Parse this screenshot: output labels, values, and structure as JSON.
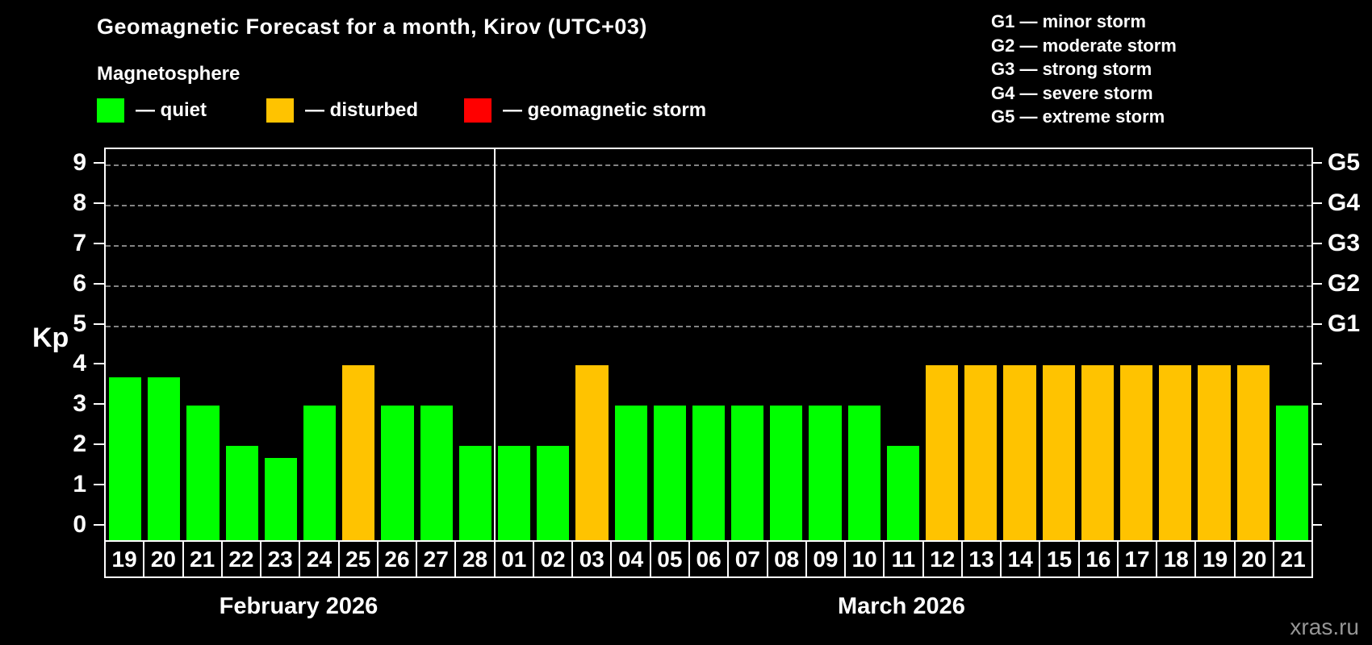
{
  "header": {
    "title": "Geomagnetic Forecast for a month, Kirov (UTC+03)"
  },
  "magnetosphere_legend": {
    "title": "Magnetosphere",
    "items": [
      {
        "label": "— quiet",
        "state": "quiet"
      },
      {
        "label": "— disturbed",
        "state": "disturbed"
      },
      {
        "label": "— geomagnetic storm",
        "state": "storm"
      }
    ]
  },
  "storm_scale_legend": {
    "items": [
      "G1 — minor storm",
      "G2 — moderate storm",
      "G3 — strong storm",
      "G4 — severe storm",
      "G5 — extreme storm"
    ]
  },
  "watermark": "xras.ru",
  "colors": {
    "quiet": "#00ff00",
    "disturbed": "#ffc300",
    "storm": "#ff0000",
    "background": "#000000",
    "axis": "#ffffff",
    "gridline": "#9a9a9a"
  },
  "chart_data": {
    "type": "bar",
    "title": "Geomagnetic Forecast for a month, Kirov (UTC+03)",
    "ylabel": "Kp",
    "ylim": [
      0,
      9
    ],
    "yticks": [
      0,
      1,
      2,
      3,
      4,
      5,
      6,
      7,
      8,
      9
    ],
    "grid_kp_levels": [
      5,
      6,
      7,
      8,
      9
    ],
    "right_axis_labels": [
      {
        "label": "G1",
        "kp": 5
      },
      {
        "label": "G2",
        "kp": 6
      },
      {
        "label": "G3",
        "kp": 7
      },
      {
        "label": "G4",
        "kp": 8
      },
      {
        "label": "G5",
        "kp": 9
      }
    ],
    "months": [
      {
        "label": "February 2026",
        "bars": [
          {
            "day": "19",
            "kp": 3.7,
            "state": "quiet"
          },
          {
            "day": "20",
            "kp": 3.7,
            "state": "quiet"
          },
          {
            "day": "21",
            "kp": 3,
            "state": "quiet"
          },
          {
            "day": "22",
            "kp": 2,
            "state": "quiet"
          },
          {
            "day": "23",
            "kp": 1.7,
            "state": "quiet"
          },
          {
            "day": "24",
            "kp": 3,
            "state": "quiet"
          },
          {
            "day": "25",
            "kp": 4,
            "state": "disturbed"
          },
          {
            "day": "26",
            "kp": 3,
            "state": "quiet"
          },
          {
            "day": "27",
            "kp": 3,
            "state": "quiet"
          },
          {
            "day": "28",
            "kp": 2,
            "state": "quiet"
          }
        ]
      },
      {
        "label": "March 2026",
        "bars": [
          {
            "day": "01",
            "kp": 2,
            "state": "quiet"
          },
          {
            "day": "02",
            "kp": 2,
            "state": "quiet"
          },
          {
            "day": "03",
            "kp": 4,
            "state": "disturbed"
          },
          {
            "day": "04",
            "kp": 3,
            "state": "quiet"
          },
          {
            "day": "05",
            "kp": 3,
            "state": "quiet"
          },
          {
            "day": "06",
            "kp": 3,
            "state": "quiet"
          },
          {
            "day": "07",
            "kp": 3,
            "state": "quiet"
          },
          {
            "day": "08",
            "kp": 3,
            "state": "quiet"
          },
          {
            "day": "09",
            "kp": 3,
            "state": "quiet"
          },
          {
            "day": "10",
            "kp": 3,
            "state": "quiet"
          },
          {
            "day": "11",
            "kp": 2,
            "state": "quiet"
          },
          {
            "day": "12",
            "kp": 4,
            "state": "disturbed"
          },
          {
            "day": "13",
            "kp": 4,
            "state": "disturbed"
          },
          {
            "day": "14",
            "kp": 4,
            "state": "disturbed"
          },
          {
            "day": "15",
            "kp": 4,
            "state": "disturbed"
          },
          {
            "day": "16",
            "kp": 4,
            "state": "disturbed"
          },
          {
            "day": "17",
            "kp": 4,
            "state": "disturbed"
          },
          {
            "day": "18",
            "kp": 4,
            "state": "disturbed"
          },
          {
            "day": "19",
            "kp": 4,
            "state": "disturbed"
          },
          {
            "day": "20",
            "kp": 4,
            "state": "disturbed"
          },
          {
            "day": "21",
            "kp": 3,
            "state": "quiet"
          }
        ]
      }
    ]
  }
}
